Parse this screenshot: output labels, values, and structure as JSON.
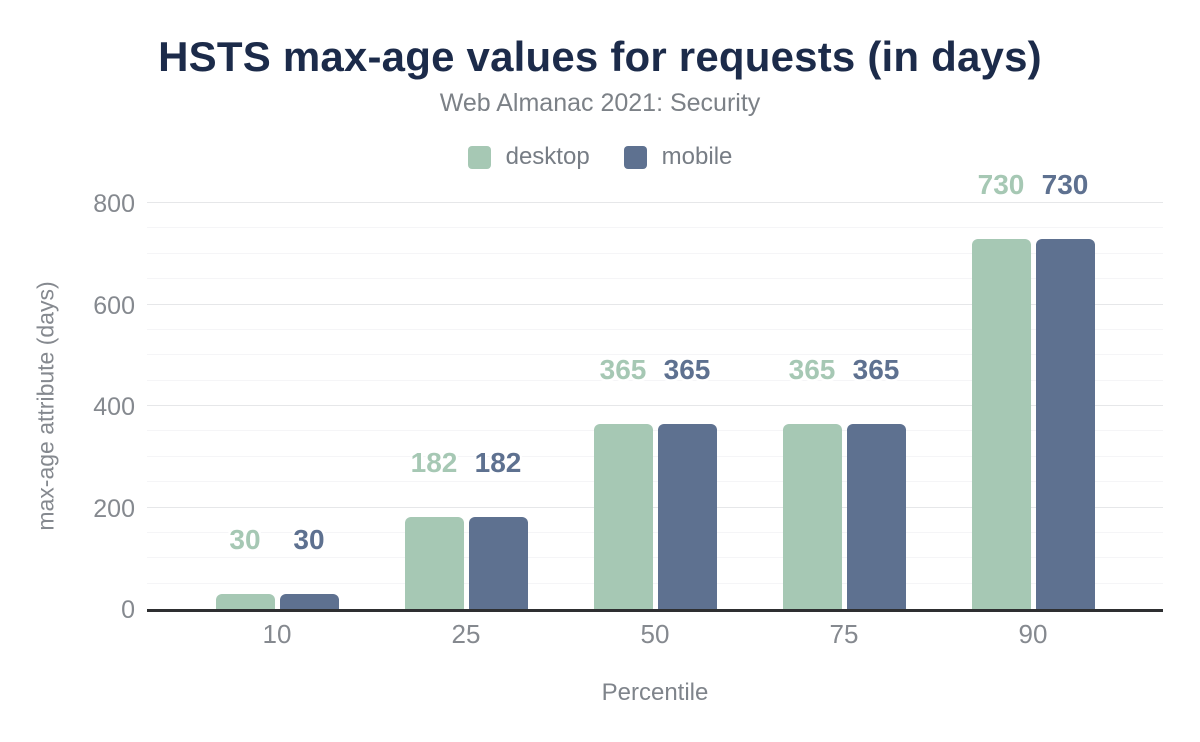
{
  "header": {
    "title": "HSTS max-age values for requests (in days)",
    "subtitle": "Web Almanac 2021: Security"
  },
  "legend": [
    {
      "label": "desktop",
      "color": "#a6c8b4"
    },
    {
      "label": "mobile",
      "color": "#5e7190"
    }
  ],
  "chart_data": {
    "type": "bar",
    "title": "HSTS max-age values for requests (in days)",
    "subtitle": "Web Almanac 2021: Security",
    "categories": [
      "10",
      "25",
      "50",
      "75",
      "90"
    ],
    "series": [
      {
        "name": "desktop",
        "color": "#a6c8b4",
        "values": [
          30,
          182,
          365,
          365,
          730
        ]
      },
      {
        "name": "mobile",
        "color": "#5e7190",
        "values": [
          30,
          182,
          365,
          365,
          730
        ]
      }
    ],
    "xlabel": "Percentile",
    "ylabel": "max-age attribute (days)",
    "ylim": [
      0,
      800
    ],
    "ytick_step": 200,
    "minor_grid_step": 50,
    "yticks": [
      "0",
      "200",
      "400",
      "600",
      "800"
    ],
    "grid": "horizontal",
    "legend_position": "top",
    "value_labels": true
  },
  "colors": {
    "title": "#1c2b4a",
    "subtitle": "#7c8187",
    "axis_text": "#85898f",
    "axis_line": "#2e2f31",
    "major_grid": "#e6e7e9",
    "minor_grid": "#f5f5f7",
    "background": "#ffffff"
  }
}
